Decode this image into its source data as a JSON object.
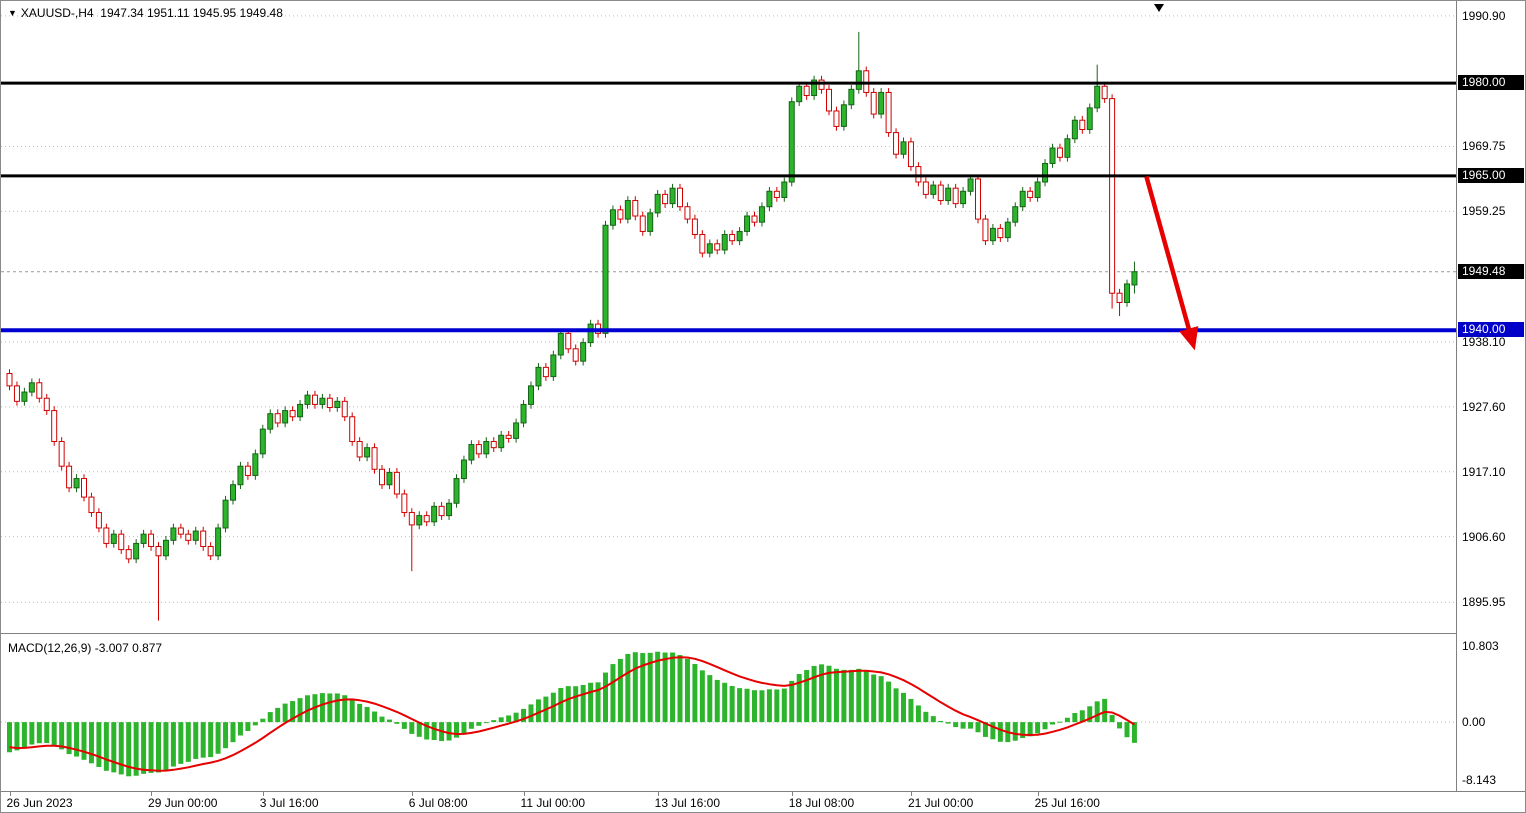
{
  "title": {
    "triangle_icon": "▼",
    "symbol": "XAUUSD-,H4",
    "ohlc": "1947.34 1951.11 1945.95 1949.48"
  },
  "colors": {
    "background": "#FFFFFF",
    "bull": "#2DB42D",
    "bull_border": "#156315",
    "bear": "#D10000",
    "bear_fill": "#FFFFFF",
    "grid": "#BEBEBE",
    "current_price_line": "#999999",
    "hline_black": "#000000",
    "hline_blue": "#0000D2",
    "tag_black_bg": "#000000",
    "tag_blue_bg": "#0000C8",
    "histogram": "#2DB42D",
    "signal_line": "#E60000",
    "arrow": "#E60000",
    "axis_text": "#000000"
  },
  "chart_data": {
    "type": "candlestick",
    "symbol": "XAUUSD-",
    "timeframe": "H4",
    "title": "XAUUSD-,H4 1947.34 1951.11 1945.95 1949.48",
    "ohlc_display": {
      "open": 1947.34,
      "high": 1951.11,
      "low": 1945.95,
      "close": 1949.48
    },
    "price_axis": {
      "render_ylim": [
        1891.0,
        1993.3
      ],
      "grid_labels": [
        "1990.90",
        "1969.75",
        "1959.25",
        "1938.10",
        "1927.60",
        "1917.10",
        "1906.60",
        "1895.95"
      ],
      "tags": [
        {
          "label": "1980.00",
          "price": 1980.0,
          "bg": "#000000"
        },
        {
          "label": "1965.00",
          "price": 1965.0,
          "bg": "#000000"
        },
        {
          "label": "1949.48",
          "price": 1949.48,
          "bg": "#000000"
        },
        {
          "label": "1940.00",
          "price": 1940.0,
          "bg": "#0000C8"
        }
      ]
    },
    "time_axis": {
      "labels": [
        {
          "bar": 0,
          "label": "26 Jun 2023"
        },
        {
          "bar": 19,
          "label": "29 Jun 00:00"
        },
        {
          "bar": 34,
          "label": "3 Jul 16:00"
        },
        {
          "bar": 54,
          "label": "6 Jul 08:00"
        },
        {
          "bar": 69,
          "label": "11 Jul 00:00"
        },
        {
          "bar": 87,
          "label": "13 Jul 16:00"
        },
        {
          "bar": 105,
          "label": "18 Jul 08:00"
        },
        {
          "bar": 121,
          "label": "21 Jul 00:00"
        },
        {
          "bar": 138,
          "label": "25 Jul 16:00"
        }
      ]
    },
    "hlines": [
      {
        "price": 1980.0,
        "color": "#000000",
        "width": 3
      },
      {
        "price": 1965.0,
        "color": "#000000",
        "width": 3
      },
      {
        "price": 1940.0,
        "color": "#0000D2",
        "width": 4
      }
    ],
    "current_price_line": {
      "price": 1949.48
    },
    "trend_arrow": {
      "from": {
        "bar": 152.6,
        "price": 1964.9
      },
      "to": {
        "bar": 158.7,
        "price": 1938.5
      },
      "color": "#E60000"
    },
    "bars": {
      "first_open": 1933.0,
      "default_wick": 0.7,
      "closes": [
        1931.0,
        1928.5,
        1930.0,
        1931.5,
        1929.0,
        1927.0,
        1922.0,
        1918.0,
        1914.5,
        1916.0,
        1913.0,
        1910.5,
        1908.0,
        1905.5,
        1907.0,
        1904.5,
        1903.0,
        1905.5,
        1907.0,
        1905.0,
        1903.5,
        1906.0,
        1908.0,
        1907.0,
        1906.0,
        1907.5,
        1905.0,
        1903.5,
        1908.0,
        1912.5,
        1915.0,
        1918.0,
        1916.5,
        1920.0,
        1924.0,
        1926.5,
        1925.0,
        1927.0,
        1926.0,
        1928.0,
        1929.5,
        1928.0,
        1929.0,
        1927.5,
        1928.5,
        1926.0,
        1922.0,
        1919.5,
        1921.0,
        1917.5,
        1915.0,
        1917.0,
        1913.5,
        1910.5,
        1908.5,
        1910.0,
        1909.0,
        1911.5,
        1910.0,
        1912.0,
        1916.0,
        1919.0,
        1921.5,
        1920.0,
        1922.0,
        1921.0,
        1923.0,
        1922.5,
        1925.0,
        1928.0,
        1931.0,
        1934.0,
        1932.5,
        1936.0,
        1939.5,
        1937.0,
        1935.0,
        1938.0,
        1941.0,
        1939.5,
        1957.0,
        1959.5,
        1958.0,
        1961.0,
        1958.5,
        1956.0,
        1959.0,
        1962.0,
        1960.5,
        1963.0,
        1960.0,
        1958.0,
        1955.5,
        1952.5,
        1954.0,
        1953.0,
        1955.5,
        1954.5,
        1956.0,
        1958.5,
        1957.5,
        1960.0,
        1962.5,
        1961.5,
        1964.0,
        1977.0,
        1979.5,
        1978.0,
        1980.5,
        1979.0,
        1975.5,
        1973.0,
        1976.5,
        1979.0,
        1982.0,
        1978.5,
        1975.0,
        1978.5,
        1972.0,
        1968.5,
        1970.5,
        1966.5,
        1964.0,
        1962.0,
        1963.5,
        1961.0,
        1963.0,
        1960.5,
        1962.5,
        1964.5,
        1958.0,
        1954.5,
        1956.5,
        1955.0,
        1957.5,
        1960.0,
        1962.5,
        1961.5,
        1964.0,
        1967.0,
        1969.5,
        1968.0,
        1971.0,
        1974.0,
        1972.5,
        1976.0,
        1979.5,
        1977.5,
        1946.0,
        1944.5,
        1947.5,
        1949.48
      ],
      "overrides": {
        "20": {
          "low": 1893.0
        },
        "54": {
          "low": 1901.0
        },
        "114": {
          "high": 1988.3
        },
        "146": {
          "high": 1983.0
        },
        "148": {
          "low": 1943.5
        },
        "149": {
          "low": 1942.3
        },
        "151": {
          "open": 1947.34,
          "high": 1951.11,
          "low": 1945.95
        }
      }
    },
    "macd": {
      "label": "MACD(12,26,9)",
      "display_values": "-3.007 0.877",
      "params": [
        12,
        26,
        9
      ],
      "axis_labels": [
        "10.803",
        "0.00",
        "-8.143"
      ],
      "render_ylim": [
        -9.9,
        12.2
      ],
      "seed": {
        "ema_fast_init_offset": -2.2,
        "ema_slow_init_offset": 2.6,
        "signal_init": -3.4
      }
    }
  }
}
